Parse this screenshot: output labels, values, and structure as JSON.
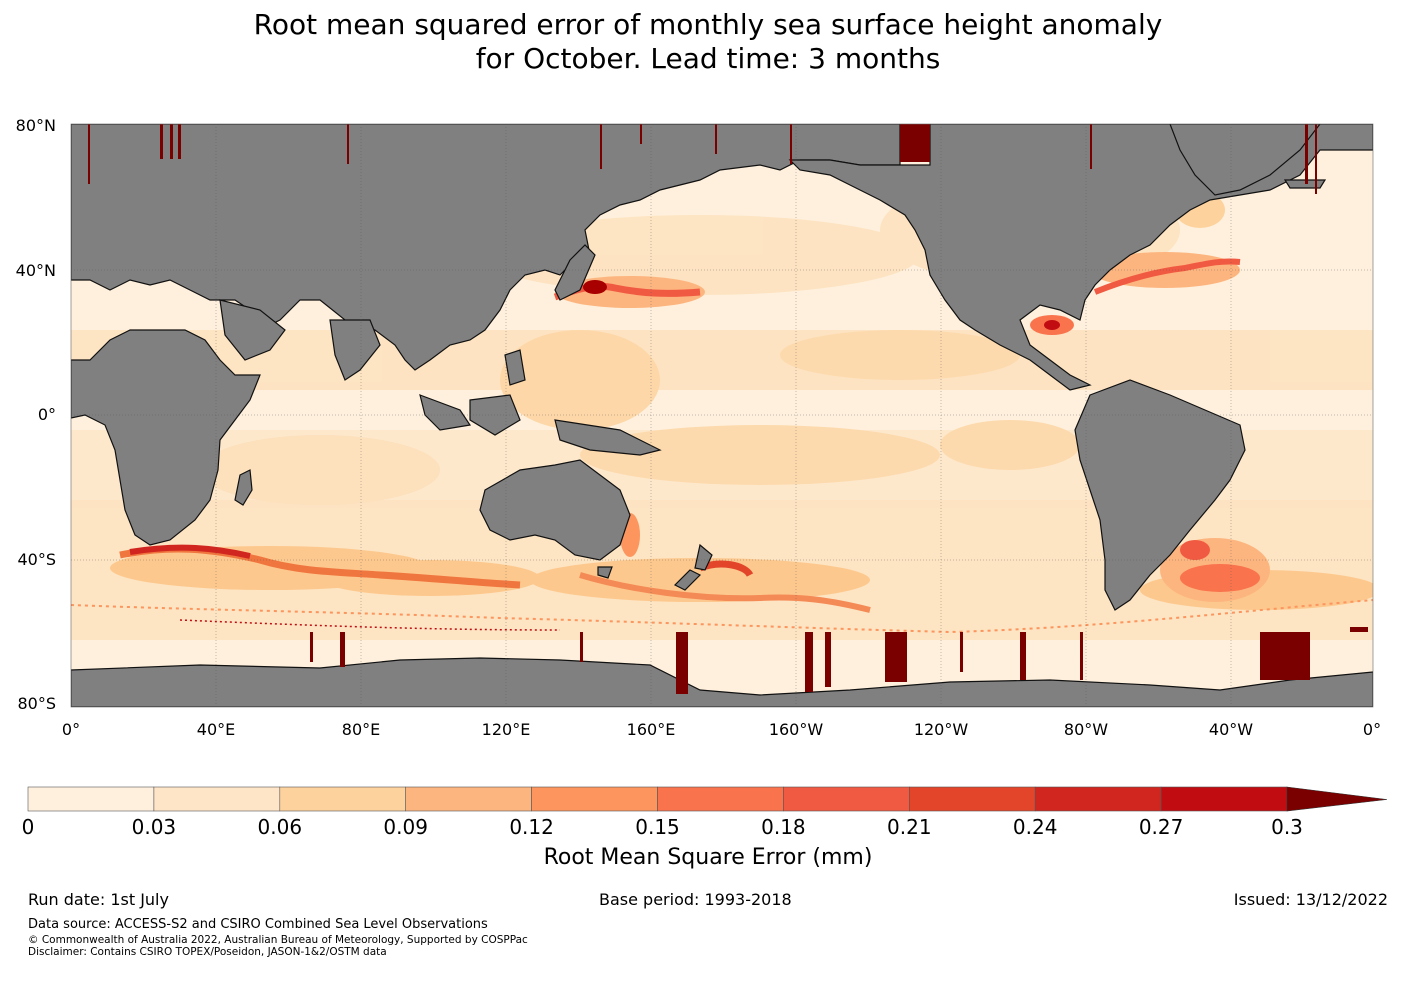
{
  "title": {
    "line1": "Root mean squared error of monthly sea surface height anomaly",
    "line2": "for October. Lead time: 3 months"
  },
  "map": {
    "lat_labels": [
      "80°N",
      "40°N",
      "0°",
      "40°S",
      "80°S"
    ],
    "lon_labels": [
      "0°",
      "40°E",
      "80°E",
      "120°E",
      "160°E",
      "160°W",
      "120°W",
      "80°W",
      "40°W",
      "0°"
    ],
    "colors": {
      "land": "#808080",
      "ocean_base": "#fef0dc",
      "ocean_light": "#fde3c0",
      "ocean_mid": "#fdcf98",
      "hotspot_high": "#e2452a",
      "hotspot_max": "#7a0000"
    }
  },
  "colorbar": {
    "ticks": [
      "0",
      "0.03",
      "0.06",
      "0.09",
      "0.12",
      "0.15",
      "0.18",
      "0.21",
      "0.24",
      "0.27",
      "0.3"
    ],
    "colors": [
      "#fff0de",
      "#fee5c8",
      "#fdd29d",
      "#fdb57f",
      "#fc955e",
      "#f9734d",
      "#f15a42",
      "#e2452a",
      "#d1261f",
      "#c10d12",
      "#a80000",
      "#7a0000"
    ],
    "label": "Root Mean Square Error (mm)"
  },
  "footer": {
    "run_date": "Run date: 1st July",
    "base_period": "Base period: 1993-2018",
    "issued": "Issued: 13/12/2022",
    "data_source": "Data source: ACCESS-S2 and CSIRO Combined Sea Level Observations",
    "copyright": "© Commonwealth of Australia 2022, Australian Bureau of Meteorology, Supported by COSPPac",
    "disclaimer": "Disclaimer: Contains CSIRO TOPEX/Poseidon, JASON-1&2/OSTM data"
  }
}
